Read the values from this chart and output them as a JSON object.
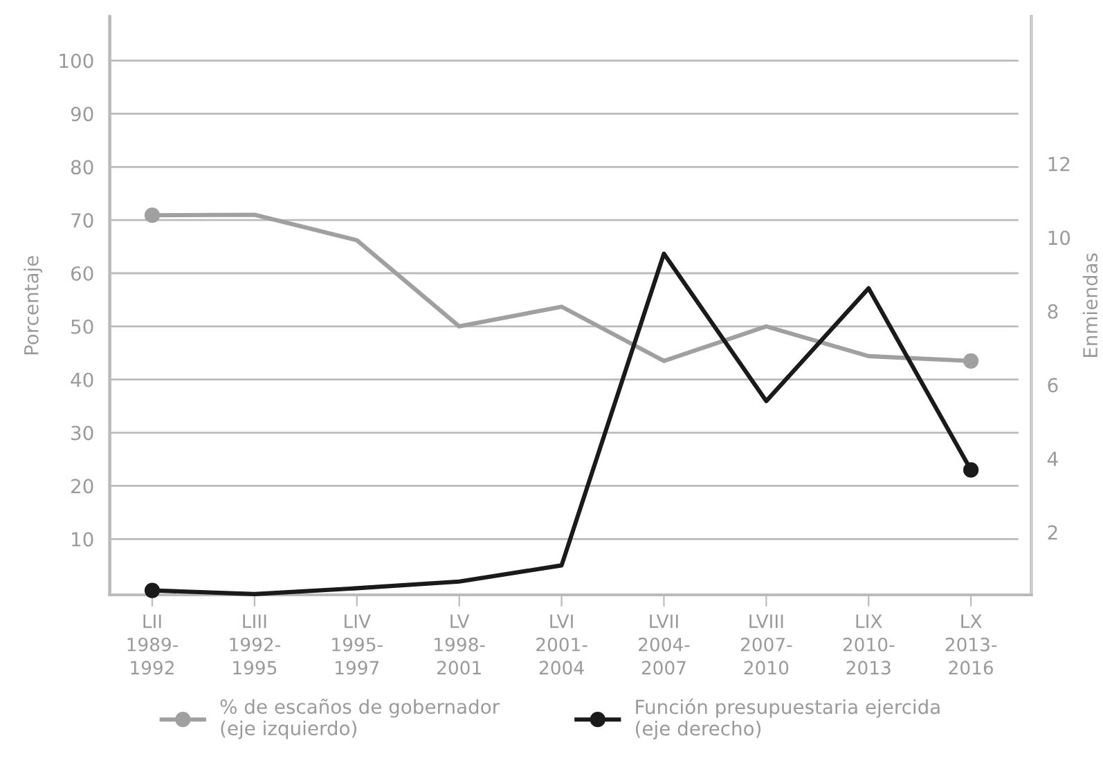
{
  "chart_data": {
    "type": "line",
    "xlabel": null,
    "ylabel": "Porcentaje",
    "y2label": "Enmiendas",
    "categories": [
      "LII\n1989-\n1992",
      "LIII\n1992-\n1995",
      "LIV\n1995-\n1997",
      "LV\n1998-\n2001",
      "LVI\n2001-\n2004",
      "LVII\n2004-\n2007",
      "LVIII\n2007-\n2010",
      "LIX\n2010-\n2013",
      "LX\n2013-\n2016"
    ],
    "series": [
      {
        "name": "% de escaños de gobernador\n(eje izquierdo)",
        "color": "#a0a0a0",
        "values": [
          70.9,
          71,
          66.2,
          50,
          53.7,
          43.5,
          50,
          44.4,
          43.5
        ]
      },
      {
        "name": "Función presupuestaria ejercida\n(eje derecho)",
        "color": "#1a1a1a",
        "axis": "y2",
        "values": [
          0.42,
          0.32,
          0.48,
          0.66,
          1.1,
          9.56,
          5.56,
          8.62,
          3.69
        ]
      }
    ],
    "ylim": [
      -0.5,
      108.3
    ],
    "yticks": [
      10,
      20,
      30,
      40,
      50,
      60,
      70,
      80,
      90,
      100
    ],
    "y2lim": [
      0.3,
      16
    ],
    "y2ticks": [
      2,
      4,
      6,
      8,
      10,
      12
    ],
    "grid": "y",
    "legend": "bottom",
    "line_style": "solid"
  }
}
